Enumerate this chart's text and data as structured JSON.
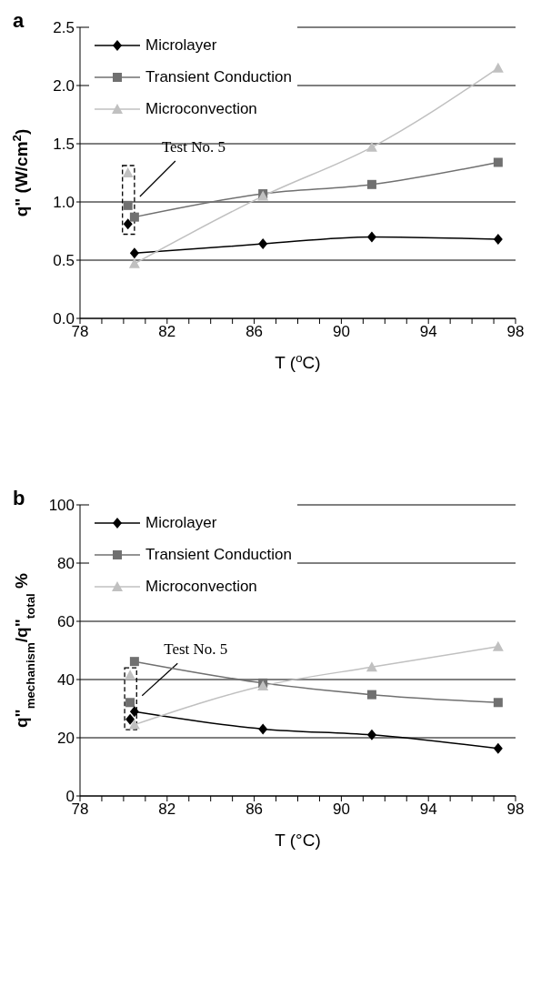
{
  "chart_data": [
    {
      "type": "line",
      "title": "a",
      "xlabel": "T ($^{o}$C)",
      "ylabel": "q\" (W/cm$^{2}$)",
      "xlim": [
        78,
        98
      ],
      "xticks": [
        78,
        {
          "value": 79,
          "label": null
        },
        {
          "value": 80,
          "label": null
        },
        {
          "value": 81,
          "label": null
        },
        82,
        {
          "value": 83,
          "label": null
        },
        {
          "value": 84,
          "label": null
        },
        {
          "value": 85,
          "label": null
        },
        86,
        {
          "value": 87,
          "label": null
        },
        {
          "value": 88,
          "label": null
        },
        {
          "value": 89,
          "label": null
        },
        90,
        {
          "value": 91,
          "label": null
        },
        {
          "value": 92,
          "label": null
        },
        {
          "value": 93,
          "label": null
        },
        94,
        {
          "value": 95,
          "label": null
        },
        {
          "value": 96,
          "label": null
        },
        {
          "value": 97,
          "label": null
        },
        98
      ],
      "ylim": [
        0,
        2.5
      ],
      "yticks": [
        {
          "value": 0,
          "label": "0.0"
        },
        0.5,
        {
          "value": 1,
          "label": "1.0"
        },
        1.5,
        {
          "value": 2,
          "label": "2.0"
        },
        2.5
      ],
      "grid": "y",
      "legend": "top left",
      "line_style": "solid",
      "annotations": [
        "Test No. 5"
      ],
      "series": [
        {
          "name": "Microlayer",
          "marker": "diamond",
          "color": "#000000",
          "x": [
            80.5,
            86.4,
            91.4,
            97.2
          ],
          "values": [
            0.56,
            0.64,
            0.7,
            0.68
          ]
        },
        {
          "name": "Transient Conduction",
          "marker": "square",
          "color": "#707070",
          "x": [
            80.5,
            86.4,
            91.4,
            97.2
          ],
          "values": [
            0.87,
            1.07,
            1.15,
            1.34
          ]
        },
        {
          "name": "Microconvection",
          "marker": "triangle",
          "color": "#c0c0c0",
          "x": [
            80.5,
            86.4,
            91.4,
            97.2
          ],
          "values": [
            0.47,
            1.05,
            1.47,
            2.15
          ]
        },
        {
          "type": "scatter",
          "marker": "diamond",
          "color": "#000000",
          "x": [
            80.2
          ],
          "values": [
            0.81
          ]
        },
        {
          "type": "scatter",
          "marker": "square",
          "color": "#707070",
          "x": [
            80.2
          ],
          "values": [
            0.97
          ]
        },
        {
          "type": "scatter",
          "marker": "triangle",
          "color": "#c0c0c0",
          "x": [
            80.2
          ],
          "values": [
            1.25
          ]
        }
      ]
    },
    {
      "type": "line",
      "title": "b",
      "xlabel": "T (°C)",
      "ylabel": "q\"$_{mechanism}$/q\"$_{total}$ %",
      "xlim": [
        78,
        98
      ],
      "xticks": [
        78,
        {
          "value": 79,
          "label": null
        },
        {
          "value": 80,
          "label": null
        },
        {
          "value": 81,
          "label": null
        },
        82,
        {
          "value": 83,
          "label": null
        },
        {
          "value": 84,
          "label": null
        },
        {
          "value": 85,
          "label": null
        },
        86,
        {
          "value": 87,
          "label": null
        },
        {
          "value": 88,
          "label": null
        },
        {
          "value": 89,
          "label": null
        },
        90,
        {
          "value": 91,
          "label": null
        },
        {
          "value": 92,
          "label": null
        },
        {
          "value": 93,
          "label": null
        },
        94,
        {
          "value": 95,
          "label": null
        },
        {
          "value": 96,
          "label": null
        },
        {
          "value": 97,
          "label": null
        },
        98
      ],
      "ylim": [
        0,
        100
      ],
      "yticks": [
        0,
        20,
        40,
        60,
        80,
        100
      ],
      "grid": "y",
      "legend": "top left",
      "line_style": "solid",
      "annotations": [
        "Test No. 5"
      ],
      "series": [
        {
          "name": "Microlayer",
          "marker": "diamond",
          "color": "#000000",
          "x": [
            80.5,
            86.4,
            91.4,
            97.2
          ],
          "values": [
            29,
            23,
            21,
            16.3
          ]
        },
        {
          "name": "Transient Conduction",
          "marker": "square",
          "color": "#707070",
          "x": [
            80.5,
            86.4,
            91.4,
            97.2
          ],
          "values": [
            46.2,
            38.8,
            34.8,
            32.1
          ]
        },
        {
          "name": "Microconvection",
          "marker": "triangle",
          "color": "#c0c0c0",
          "x": [
            80.5,
            86.4,
            91.4,
            97.2
          ],
          "values": [
            24.5,
            37.8,
            44.3,
            51.3
          ]
        },
        {
          "type": "scatter",
          "marker": "diamond",
          "color": "#000000",
          "x": [
            80.3
          ],
          "values": [
            26.3
          ]
        },
        {
          "type": "scatter",
          "marker": "square",
          "color": "#707070",
          "x": [
            80.3
          ],
          "values": [
            32.1
          ]
        },
        {
          "type": "scatter",
          "marker": "triangle",
          "color": "#c0c0c0",
          "x": [
            80.3
          ],
          "values": [
            41.5
          ]
        }
      ]
    }
  ]
}
